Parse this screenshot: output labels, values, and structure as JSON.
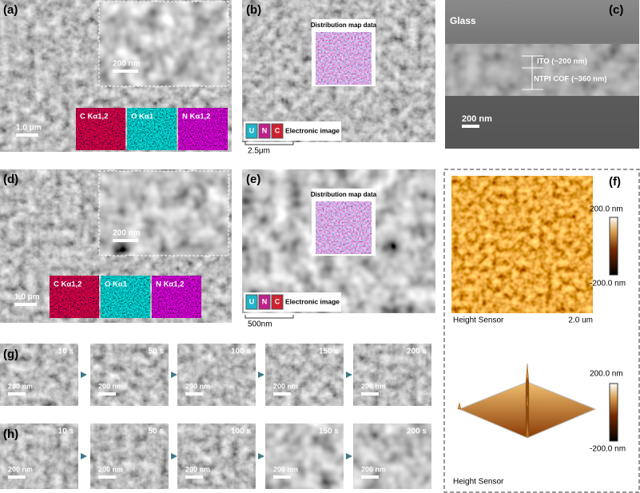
{
  "panels": {
    "a": {
      "label": "(a)",
      "inset_scale": "200 nm",
      "scale": "1.0 μm",
      "maps": [
        "C Kα1,2",
        "O Kα1",
        "N Kα1,2"
      ]
    },
    "b": {
      "label": "(b)",
      "map_title": "Distribution map data",
      "legend": [
        "U",
        "N",
        "C"
      ],
      "legend_caption": "Electronic image",
      "scale": "2.5μm"
    },
    "c": {
      "label": "(c)",
      "top_layer": "Glass",
      "layers": [
        "ITO (~200 nm)",
        "NTPI COF (~360 nm)"
      ],
      "scale": "200 nm"
    },
    "d": {
      "label": "(d)",
      "inset_scale": "200 nm",
      "scale": "1.0 μm",
      "maps": [
        "C Kα1,2",
        "O Kα1",
        "N Kα1,2"
      ]
    },
    "e": {
      "label": "(e)",
      "map_title": "Distribution map data",
      "legend": [
        "U",
        "N",
        "C"
      ],
      "legend_caption": "Electronic image",
      "scale": "500nm"
    },
    "f": {
      "label": "(f)",
      "colorbar_max": "200.0 nm",
      "colorbar_min": "-200.0 nm",
      "caption": "Height Sensor",
      "scale": "2.0 um",
      "colorbar_max_3d": "200.0 nm",
      "colorbar_min_3d": "-200.0 nm",
      "caption_3d": "Height Sensor"
    },
    "g": {
      "label": "(g)",
      "frames": [
        {
          "time": "10 s",
          "scale": "200 nm"
        },
        {
          "time": "50 s",
          "scale": "200 nm"
        },
        {
          "time": "100 s",
          "scale": "200 nm"
        },
        {
          "time": "150 s",
          "scale": "200 nm"
        },
        {
          "time": "200 s",
          "scale": "200 nm"
        }
      ]
    },
    "h": {
      "label": "(h)",
      "frames": [
        {
          "time": "10 s",
          "scale": "200 nm"
        },
        {
          "time": "50 s",
          "scale": "200 nm"
        },
        {
          "time": "100 s",
          "scale": "200 nm"
        },
        {
          "time": "150 s",
          "scale": "200 nm"
        },
        {
          "time": "200 s",
          "scale": "200 nm"
        }
      ]
    }
  }
}
